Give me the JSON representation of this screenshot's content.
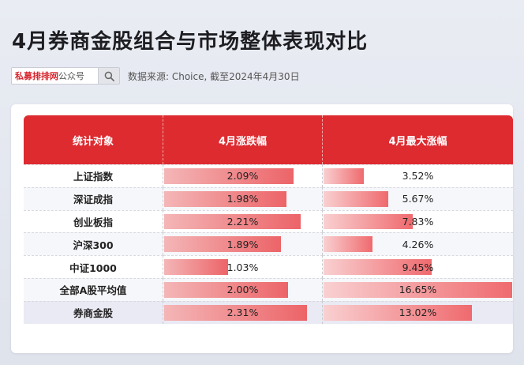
{
  "title": "4月券商金股组合与市场整体表现对比",
  "search": {
    "brand": "私募排排网",
    "suffix": "公众号"
  },
  "source": "数据来源: Choice, 截至2024年4月30日",
  "table": {
    "headers": [
      "统计对象",
      "4月涨跌幅",
      "4月最大涨幅"
    ],
    "rows": [
      {
        "name": "上证指数",
        "change": "2.09%",
        "change_pct": 2.09,
        "max": "3.52%",
        "max_pct": 3.52
      },
      {
        "name": "深证成指",
        "change": "1.98%",
        "change_pct": 1.98,
        "max": "5.67%",
        "max_pct": 5.67
      },
      {
        "name": "创业板指",
        "change": "2.21%",
        "change_pct": 2.21,
        "max": "7.83%",
        "max_pct": 7.83
      },
      {
        "name": "沪深300",
        "change": "1.89%",
        "change_pct": 1.89,
        "max": "4.26%",
        "max_pct": 4.26
      },
      {
        "name": "中证1000",
        "change": "1.03%",
        "change_pct": 1.03,
        "max": "9.45%",
        "max_pct": 9.45
      },
      {
        "name": "全部A股平均值",
        "change": "2.00%",
        "change_pct": 2.0,
        "max": "16.65%",
        "max_pct": 16.65
      },
      {
        "name": "券商金股",
        "change": "2.31%",
        "change_pct": 2.31,
        "max": "13.02%",
        "max_pct": 13.02
      }
    ]
  },
  "colors": {
    "header_red": "#dd2b30",
    "bar_red": "#ec6468"
  },
  "icons": {
    "search": "search-icon"
  }
}
